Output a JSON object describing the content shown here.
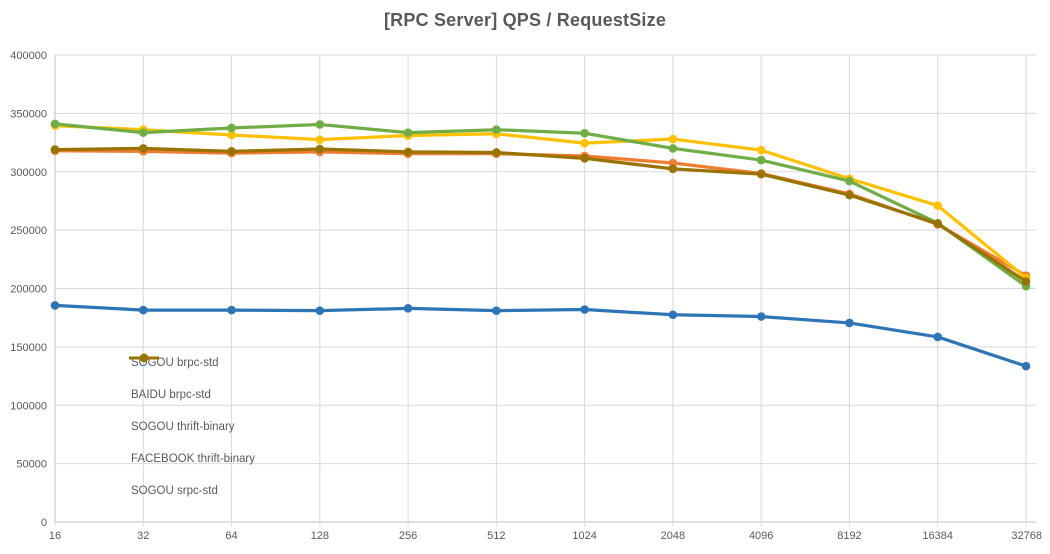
{
  "chart_data": {
    "type": "line",
    "title": "[RPC Server] QPS / RequestSize",
    "xlabel": "",
    "ylabel": "",
    "categories": [
      "16",
      "32",
      "64",
      "128",
      "256",
      "512",
      "1024",
      "2048",
      "4096",
      "8192",
      "16384",
      "32768"
    ],
    "ylim": [
      0,
      400000
    ],
    "ytick_step": 50000,
    "ytick_labels": [
      "0",
      "50000",
      "100000",
      "150000",
      "200000",
      "250000",
      "300000",
      "350000",
      "400000"
    ],
    "grid": "both",
    "legend_position": "inside-bottom-left",
    "series": [
      {
        "name": "SOGOU brpc-std",
        "color": "#ED7D31",
        "values": [
          318000,
          317500,
          316000,
          317000,
          315500,
          315500,
          313500,
          307500,
          298500,
          281000,
          255000,
          211000
        ]
      },
      {
        "name": "BAIDU brpc-std",
        "color": "#FFC000",
        "values": [
          339500,
          336000,
          331500,
          327500,
          331000,
          332500,
          324500,
          328000,
          318500,
          294000,
          271000,
          209000
        ]
      },
      {
        "name": "SOGOU thrift-binary",
        "color": "#70AD47",
        "values": [
          341000,
          333500,
          337500,
          340500,
          333500,
          336000,
          333000,
          320000,
          310000,
          292000,
          256000,
          202000
        ]
      },
      {
        "name": "FACEBOOK thrift-binary",
        "color": "#2E75B6",
        "values": [
          185500,
          181500,
          181500,
          181000,
          183000,
          181000,
          182000,
          177500,
          176000,
          170500,
          158500,
          133500
        ]
      },
      {
        "name": "SOGOU srpc-std",
        "color": "#997300",
        "values": [
          319000,
          320000,
          317500,
          319500,
          317000,
          316500,
          311500,
          302500,
          298000,
          280000,
          255500,
          206000
        ]
      }
    ],
    "colors": {
      "gridline": "#D9D9D9",
      "axis_line": "#BFBFBF",
      "tick_label": "#595959",
      "title": "#595959",
      "background": "#FFFFFF"
    }
  }
}
